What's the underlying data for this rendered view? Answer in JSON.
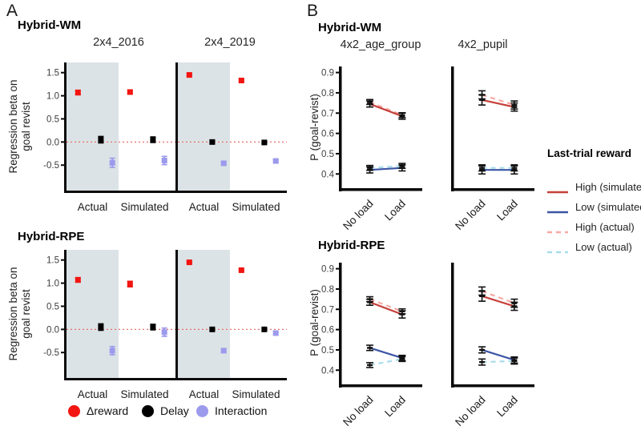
{
  "figure": {
    "colors": {
      "reward_red": "#F21511",
      "delay_black": "#000000",
      "interaction_purple": "#9C9AEC",
      "band": "#DCE3E6",
      "zero_line": "#ED6E6E",
      "axis": "#0a0a0a",
      "high_simulated": "#C5403A",
      "low_simulated": "#3A55A4",
      "high_actual": "#F9A8A3",
      "low_actual": "#A8DCEA"
    }
  },
  "panel_a": {
    "label": "A",
    "sections": [
      {
        "title": "Hybrid-WM"
      },
      {
        "title": "Hybrid-RPE"
      }
    ],
    "ylabel_line1": "Regression beta on",
    "ylabel_line2": "goal revist",
    "legend": [
      {
        "label": "Δreward",
        "color": "#F21511"
      },
      {
        "label": "Delay",
        "color": "#000000"
      },
      {
        "label": "Interaction",
        "color": "#9C9AEC"
      }
    ]
  },
  "panel_b": {
    "label": "B",
    "sections": [
      {
        "title": "Hybrid-WM"
      },
      {
        "title": "Hybrid-RPE"
      }
    ],
    "ylabel": "P (goal-revist)",
    "legend": {
      "title": "Last-trial reward",
      "items": [
        {
          "label": "High (simulated)",
          "color": "#C5403A",
          "style": "solid"
        },
        {
          "label": "Low (simulated)",
          "color": "#3A55A4",
          "style": "solid"
        },
        {
          "label": "High (actual)",
          "color": "#F9A8A3",
          "style": "dashed"
        },
        {
          "label": "Low (actual)",
          "color": "#A8DCEA",
          "style": "dashed"
        }
      ]
    }
  },
  "chart_data": [
    {
      "id": "wm_2016",
      "panel": "A",
      "section": "Hybrid-WM",
      "title": "2x4_2016",
      "type": "scatter",
      "categories": [
        "Actual",
        "Simulated"
      ],
      "ylabel": "Regression beta on goal revist",
      "yticks": [
        -0.5,
        0.0,
        0.5,
        1.0,
        1.5
      ],
      "ylim": [
        -1.05,
        1.72
      ],
      "zero_line": true,
      "shaded_category": "Actual",
      "series": [
        {
          "name": "Δreward",
          "color": "#F21511",
          "marker": "square",
          "values": [
            1.07,
            1.08
          ],
          "errors": [
            0.05,
            0.04
          ]
        },
        {
          "name": "Delay",
          "color": "#000000",
          "marker": "square",
          "values": [
            0.05,
            0.05
          ],
          "errors": [
            0.07,
            0.06
          ]
        },
        {
          "name": "Interaction",
          "color": "#9C9AEC",
          "marker": "square",
          "values": [
            -0.45,
            -0.4
          ],
          "errors": [
            0.1,
            0.09
          ]
        }
      ]
    },
    {
      "id": "wm_2019",
      "panel": "A",
      "section": "Hybrid-WM",
      "title": "2x4_2019",
      "type": "scatter",
      "categories": [
        "Actual",
        "Simulated"
      ],
      "ylabel": "Regression beta on goal revist",
      "yticks": [
        -0.5,
        0.0,
        0.5,
        1.0,
        1.5
      ],
      "ylim": [
        -1.05,
        1.72
      ],
      "zero_line": true,
      "shaded_category": "Actual",
      "series": [
        {
          "name": "Δreward",
          "color": "#F21511",
          "marker": "square",
          "values": [
            1.45,
            1.33
          ],
          "errors": [
            0.02,
            0.02
          ]
        },
        {
          "name": "Delay",
          "color": "#000000",
          "marker": "square",
          "values": [
            0.0,
            -0.01
          ],
          "errors": [
            0.03,
            0.02
          ]
        },
        {
          "name": "Interaction",
          "color": "#9C9AEC",
          "marker": "square",
          "values": [
            -0.46,
            -0.41
          ],
          "errors": [
            0.03,
            0.03
          ]
        }
      ]
    },
    {
      "id": "rpe_2016",
      "panel": "A",
      "section": "Hybrid-RPE",
      "title": "2x4_2016",
      "type": "scatter",
      "categories": [
        "Actual",
        "Simulated"
      ],
      "ylabel": "Regression beta on goal revist",
      "yticks": [
        -0.5,
        0.0,
        0.5,
        1.0,
        1.5
      ],
      "ylim": [
        -1.05,
        1.72
      ],
      "zero_line": true,
      "shaded_category": "Actual",
      "series": [
        {
          "name": "Δreward",
          "color": "#F21511",
          "marker": "square",
          "values": [
            1.07,
            0.98
          ],
          "errors": [
            0.05,
            0.06
          ]
        },
        {
          "name": "Delay",
          "color": "#000000",
          "marker": "square",
          "values": [
            0.05,
            0.05
          ],
          "errors": [
            0.07,
            0.06
          ]
        },
        {
          "name": "Interaction",
          "color": "#9C9AEC",
          "marker": "square",
          "values": [
            -0.46,
            -0.06
          ],
          "errors": [
            0.09,
            0.09
          ]
        }
      ]
    },
    {
      "id": "rpe_2019",
      "panel": "A",
      "section": "Hybrid-RPE",
      "title": "2x4_2019",
      "type": "scatter",
      "categories": [
        "Actual",
        "Simulated"
      ],
      "ylabel": "Regression beta on goal revist",
      "yticks": [
        -0.5,
        0.0,
        0.5,
        1.0,
        1.5
      ],
      "ylim": [
        -1.05,
        1.72
      ],
      "zero_line": true,
      "shaded_category": "Actual",
      "series": [
        {
          "name": "Δreward",
          "color": "#F21511",
          "marker": "square",
          "values": [
            1.45,
            1.28
          ],
          "errors": [
            0.02,
            0.02
          ]
        },
        {
          "name": "Delay",
          "color": "#000000",
          "marker": "square",
          "values": [
            0.0,
            0.0
          ],
          "errors": [
            0.02,
            0.02
          ]
        },
        {
          "name": "Interaction",
          "color": "#9C9AEC",
          "marker": "square",
          "values": [
            -0.46,
            -0.08
          ],
          "errors": [
            0.03,
            0.04
          ]
        }
      ]
    },
    {
      "id": "wm_age",
      "panel": "B",
      "section": "Hybrid-WM",
      "title": "4x2_age_group",
      "type": "line",
      "categories": [
        "No load",
        "Load"
      ],
      "ylabel": "P (goal-revist)",
      "yticks": [
        0.4,
        0.5,
        0.6,
        0.7,
        0.8,
        0.9
      ],
      "ylim": [
        0.33,
        0.93
      ],
      "series": [
        {
          "name": "High (simulated)",
          "style": "solid",
          "color": "#C5403A",
          "values": [
            0.745,
            0.685
          ],
          "errors": [
            0.015,
            0.015
          ]
        },
        {
          "name": "Low (simulated)",
          "style": "solid",
          "color": "#3A55A4",
          "values": [
            0.42,
            0.43
          ],
          "errors": [
            0.015,
            0.015
          ]
        },
        {
          "name": "High (actual)",
          "style": "dashed",
          "color": "#F9A8A3",
          "values": [
            0.755,
            0.69
          ],
          "errors": [
            0.012,
            0.012
          ]
        },
        {
          "name": "Low (actual)",
          "style": "dashed",
          "color": "#A8DCEA",
          "values": [
            0.43,
            0.44
          ],
          "errors": [
            0.012,
            0.012
          ]
        }
      ]
    },
    {
      "id": "wm_pupil",
      "panel": "B",
      "section": "Hybrid-WM",
      "title": "4x2_pupil",
      "type": "line",
      "categories": [
        "No load",
        "Load"
      ],
      "ylabel": "P (goal-revist)",
      "yticks": [
        0.4,
        0.5,
        0.6,
        0.7,
        0.8,
        0.9
      ],
      "ylim": [
        0.33,
        0.93
      ],
      "series": [
        {
          "name": "High (simulated)",
          "style": "solid",
          "color": "#C5403A",
          "values": [
            0.765,
            0.73
          ],
          "errors": [
            0.025,
            0.02
          ]
        },
        {
          "name": "Low (simulated)",
          "style": "solid",
          "color": "#3A55A4",
          "values": [
            0.42,
            0.42
          ],
          "errors": [
            0.02,
            0.02
          ]
        },
        {
          "name": "High (actual)",
          "style": "dashed",
          "color": "#F9A8A3",
          "values": [
            0.79,
            0.74
          ],
          "errors": [
            0.02,
            0.02
          ]
        },
        {
          "name": "Low (actual)",
          "style": "dashed",
          "color": "#A8DCEA",
          "values": [
            0.43,
            0.43
          ],
          "errors": [
            0.015,
            0.015
          ]
        }
      ]
    },
    {
      "id": "rpe_age",
      "panel": "B",
      "section": "Hybrid-RPE",
      "title": "4x2_age_group",
      "type": "line",
      "categories": [
        "No load",
        "Load"
      ],
      "ylabel": "P (goal-revist)",
      "yticks": [
        0.4,
        0.5,
        0.6,
        0.7,
        0.8,
        0.9
      ],
      "ylim": [
        0.33,
        0.93
      ],
      "series": [
        {
          "name": "High (simulated)",
          "style": "solid",
          "color": "#C5403A",
          "values": [
            0.735,
            0.675
          ],
          "errors": [
            0.015,
            0.018
          ]
        },
        {
          "name": "Low (simulated)",
          "style": "solid",
          "color": "#3A55A4",
          "values": [
            0.51,
            0.46
          ],
          "errors": [
            0.013,
            0.013
          ]
        },
        {
          "name": "High (actual)",
          "style": "dashed",
          "color": "#F9A8A3",
          "values": [
            0.75,
            0.69
          ],
          "errors": [
            0.012,
            0.012
          ]
        },
        {
          "name": "Low (actual)",
          "style": "dashed",
          "color": "#A8DCEA",
          "values": [
            0.425,
            0.455
          ],
          "errors": [
            0.012,
            0.012
          ]
        }
      ]
    },
    {
      "id": "rpe_pupil",
      "panel": "B",
      "section": "Hybrid-RPE",
      "title": "4x2_pupil",
      "type": "line",
      "categories": [
        "No load",
        "Load"
      ],
      "ylabel": "P (goal-revist)",
      "yticks": [
        0.4,
        0.5,
        0.6,
        0.7,
        0.8,
        0.9
      ],
      "ylim": [
        0.33,
        0.93
      ],
      "series": [
        {
          "name": "High (simulated)",
          "style": "solid",
          "color": "#C5403A",
          "values": [
            0.765,
            0.715
          ],
          "errors": [
            0.025,
            0.02
          ]
        },
        {
          "name": "Low (simulated)",
          "style": "solid",
          "color": "#3A55A4",
          "values": [
            0.5,
            0.45
          ],
          "errors": [
            0.015,
            0.015
          ]
        },
        {
          "name": "High (actual)",
          "style": "dashed",
          "color": "#F9A8A3",
          "values": [
            0.79,
            0.73
          ],
          "errors": [
            0.02,
            0.02
          ]
        },
        {
          "name": "Low (actual)",
          "style": "dashed",
          "color": "#A8DCEA",
          "values": [
            0.44,
            0.445
          ],
          "errors": [
            0.015,
            0.015
          ]
        }
      ]
    }
  ]
}
